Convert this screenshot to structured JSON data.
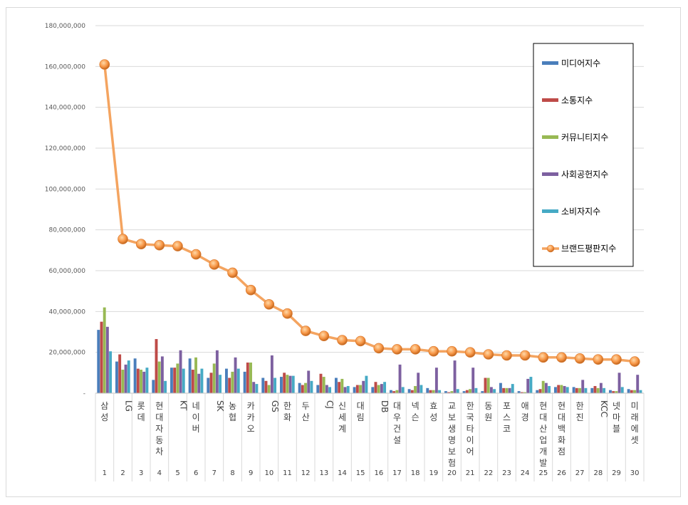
{
  "chart_data": {
    "type": "bar+line",
    "title": "",
    "xlabel": "",
    "ylabel": "",
    "ylim": [
      0,
      180000000
    ],
    "ytick_step": 20000000,
    "yticks": [
      "-",
      "20,000,000",
      "40,000,000",
      "60,000,000",
      "80,000,000",
      "100,000,000",
      "120,000,000",
      "140,000,000",
      "160,000,000",
      "180,000,000"
    ],
    "grid": true,
    "legend_position": "right",
    "ranks": [
      "1",
      "2",
      "3",
      "4",
      "5",
      "6",
      "7",
      "8",
      "9",
      "10",
      "11",
      "12",
      "13",
      "14",
      "15",
      "16",
      "17",
      "18",
      "19",
      "20",
      "21",
      "22",
      "23",
      "24",
      "25",
      "26",
      "27",
      "28",
      "29",
      "30"
    ],
    "categories": [
      "삼성",
      "LG",
      "롯데",
      "현대자동차",
      "KT",
      "네이버",
      "SK",
      "농협",
      "카카오",
      "GS",
      "한화",
      "두산",
      "CJ",
      "신세계",
      "대림",
      "DB",
      "대우건설",
      "넥슨",
      "효성",
      "교보생명보험",
      "한국타이어",
      "동원",
      "포스코",
      "애경",
      "현대산업개발",
      "현대백화점",
      "한진",
      "KCC",
      "넷마블",
      "미래에셋"
    ],
    "series": [
      {
        "name": "미디어지수",
        "kind": "bar",
        "color": "#4a7ebb",
        "values": [
          31000000,
          15500000,
          17000000,
          6500000,
          12500000,
          17000000,
          7500000,
          12000000,
          10500000,
          7500000,
          8000000,
          5000000,
          4000000,
          7500000,
          3000000,
          3000000,
          1500000,
          2000000,
          2500000,
          1000000,
          1000000,
          1000000,
          5000000,
          1000000,
          1500000,
          3000000,
          3000000,
          2500000,
          1500000,
          2000000
        ]
      },
      {
        "name": "소통지수",
        "kind": "bar",
        "color": "#be4b48",
        "values": [
          35000000,
          19000000,
          12000000,
          26500000,
          12500000,
          11500000,
          10000000,
          7500000,
          15000000,
          6000000,
          10000000,
          4000000,
          9500000,
          5500000,
          4000000,
          5500000,
          1000000,
          1500000,
          1500000,
          500000,
          1500000,
          7500000,
          2500000,
          500000,
          2000000,
          4000000,
          2500000,
          3500000,
          1000000,
          1500000
        ]
      },
      {
        "name": "커뮤니티지수",
        "kind": "bar",
        "color": "#98b954",
        "values": [
          42000000,
          11500000,
          11500000,
          15500000,
          14500000,
          17500000,
          14500000,
          10500000,
          15000000,
          4000000,
          9000000,
          5000000,
          8000000,
          7000000,
          4000000,
          4000000,
          1500000,
          3500000,
          1500000,
          1000000,
          2000000,
          7500000,
          2500000,
          500000,
          6000000,
          4000000,
          2500000,
          2500000,
          1000000,
          1500000
        ]
      },
      {
        "name": "사회공헌지수",
        "kind": "bar",
        "color": "#7d60a0",
        "values": [
          32500000,
          14000000,
          10500000,
          18000000,
          21000000,
          9500000,
          21000000,
          17500000,
          5500000,
          18500000,
          8500000,
          11000000,
          4000000,
          3000000,
          6000000,
          4500000,
          14000000,
          10000000,
          12500000,
          16000000,
          12500000,
          3000000,
          2500000,
          7000000,
          5000000,
          3500000,
          6500000,
          5000000,
          10000000,
          9000000
        ]
      },
      {
        "name": "소비자지수",
        "kind": "bar",
        "color": "#46aac5",
        "values": [
          20500000,
          16000000,
          12500000,
          6000000,
          12000000,
          12000000,
          9000000,
          12000000,
          4500000,
          7500000,
          8500000,
          6000000,
          3000000,
          3500000,
          8500000,
          5500000,
          3000000,
          4000000,
          1500000,
          2000000,
          2500000,
          2000000,
          4500000,
          8000000,
          3500000,
          3000000,
          2500000,
          2500000,
          3000000,
          1500000
        ]
      },
      {
        "name": "브랜드평판지수",
        "kind": "line",
        "color": "#f79646",
        "values": [
          161000000,
          75500000,
          73000000,
          72500000,
          72000000,
          68000000,
          63000000,
          59000000,
          50500000,
          43500000,
          39000000,
          30500000,
          28000000,
          26000000,
          25500000,
          22000000,
          21500000,
          21500000,
          20500000,
          20500000,
          20000000,
          19000000,
          18500000,
          18500000,
          17500000,
          17500000,
          17000000,
          16500000,
          16500000,
          15500000
        ]
      }
    ]
  }
}
